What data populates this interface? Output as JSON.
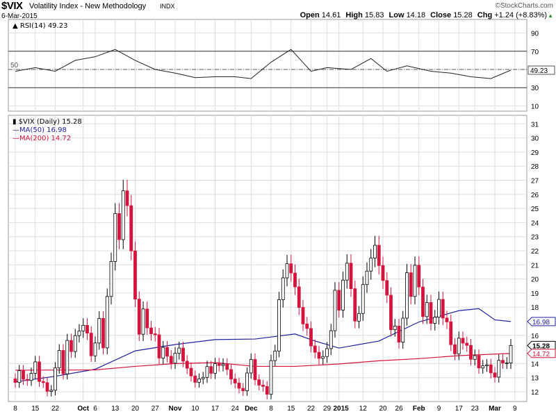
{
  "header": {
    "symbol": "$VIX",
    "description": "Volatility Index - New Methodology",
    "exchange": "INDX",
    "brand": "©StockCharts.com",
    "date": "6-Mar-2015",
    "open_label": "Open",
    "open": "14.61",
    "high_label": "High",
    "high": "15.83",
    "low_label": "Low",
    "low": "14.18",
    "close_label": "Close",
    "close": "15.28",
    "chg_label": "Chg",
    "chg": "+1.24 (+8.83%)",
    "chg_icon": "up-triangle-icon"
  },
  "colors": {
    "up": "#000000",
    "down": "#d4143c",
    "ma50": "#1e1ea0",
    "ma200": "#d4143c",
    "grid": "#dddddd"
  },
  "chart_data": [
    {
      "type": "line",
      "panel": "RSI",
      "legend": "RSI(14) 49.23",
      "last_label": "49.23",
      "ylim": [
        0,
        100
      ],
      "yticks": [
        10,
        30,
        50,
        70,
        90
      ],
      "reference_lines": [
        30,
        50,
        70
      ],
      "points": [
        [
          "09-08",
          48
        ],
        [
          "09-15",
          52
        ],
        [
          "09-22",
          48
        ],
        [
          "09-29",
          60
        ],
        [
          "10-06",
          64
        ],
        [
          "10-13",
          72
        ],
        [
          "10-20",
          60
        ],
        [
          "10-27",
          50
        ],
        [
          "11-03",
          46
        ],
        [
          "11-10",
          41
        ],
        [
          "11-17",
          42
        ],
        [
          "11-24",
          42
        ],
        [
          "12-01",
          40
        ],
        [
          "12-08",
          58
        ],
        [
          "12-15",
          72
        ],
        [
          "12-22",
          48
        ],
        [
          "12-29",
          52
        ],
        [
          "01-07",
          50
        ],
        [
          "01-14",
          62
        ],
        [
          "01-21",
          48
        ],
        [
          "01-28",
          54
        ],
        [
          "02-05",
          48
        ],
        [
          "02-12",
          46
        ],
        [
          "02-20",
          42
        ],
        [
          "02-27",
          40
        ],
        [
          "03-06",
          49.23
        ]
      ]
    },
    {
      "type": "candlestick",
      "panel": "price",
      "legend": "$VIX (Daily) 15.28",
      "scale": "price",
      "ylim": [
        11.4,
        31.6
      ],
      "yticks": [
        12,
        13,
        14,
        16,
        18,
        19,
        20,
        21,
        22,
        23,
        24,
        25,
        26,
        27,
        28,
        29,
        30,
        31
      ],
      "grid": true,
      "x_labels": [
        {
          "label": "8",
          "date": "09-08"
        },
        {
          "label": "15",
          "date": "09-15"
        },
        {
          "label": "22",
          "date": "09-22"
        },
        {
          "label": "Oct",
          "date": "10-01",
          "bold": true
        },
        {
          "label": "6",
          "date": "10-06"
        },
        {
          "label": "13",
          "date": "10-13"
        },
        {
          "label": "20",
          "date": "10-20"
        },
        {
          "label": "27",
          "date": "10-27"
        },
        {
          "label": "Nov",
          "date": "11-03",
          "bold": true
        },
        {
          "label": "10",
          "date": "11-10"
        },
        {
          "label": "17",
          "date": "11-17"
        },
        {
          "label": "24",
          "date": "11-24"
        },
        {
          "label": "Dec",
          "date": "12-01",
          "bold": true
        },
        {
          "label": "8",
          "date": "12-08"
        },
        {
          "label": "15",
          "date": "12-15"
        },
        {
          "label": "22",
          "date": "12-22"
        },
        {
          "label": "29",
          "date": "12-29"
        },
        {
          "label": "2015",
          "date": "01-02",
          "bold": true
        },
        {
          "label": "12",
          "date": "01-12"
        },
        {
          "label": "20",
          "date": "01-20"
        },
        {
          "label": "26",
          "date": "01-26"
        },
        {
          "label": "Feb",
          "date": "02-02",
          "bold": true
        },
        {
          "label": "9",
          "date": "02-09"
        },
        {
          "label": "17",
          "date": "02-17"
        },
        {
          "label": "23",
          "date": "02-23"
        },
        {
          "label": "Mar",
          "date": "03-02",
          "bold": true
        },
        {
          "label": "9",
          "date": "03-09"
        }
      ],
      "dates": [
        "09-08",
        "09-09",
        "09-10",
        "09-11",
        "09-12",
        "09-15",
        "09-16",
        "09-17",
        "09-18",
        "09-19",
        "09-22",
        "09-23",
        "09-24",
        "09-25",
        "09-26",
        "09-29",
        "09-30",
        "10-01",
        "10-02",
        "10-03",
        "10-06",
        "10-07",
        "10-08",
        "10-09",
        "10-10",
        "10-13",
        "10-14",
        "10-15",
        "10-16",
        "10-17",
        "10-20",
        "10-21",
        "10-22",
        "10-23",
        "10-24",
        "10-27",
        "10-28",
        "10-29",
        "10-30",
        "10-31",
        "11-03",
        "11-04",
        "11-05",
        "11-06",
        "11-07",
        "11-10",
        "11-11",
        "11-12",
        "11-13",
        "11-14",
        "11-17",
        "11-18",
        "11-19",
        "11-20",
        "11-21",
        "11-24",
        "11-25",
        "11-26",
        "11-28",
        "12-01",
        "12-02",
        "12-03",
        "12-04",
        "12-05",
        "12-08",
        "12-09",
        "12-10",
        "12-11",
        "12-12",
        "12-15",
        "12-16",
        "12-17",
        "12-18",
        "12-19",
        "12-22",
        "12-23",
        "12-24",
        "12-26",
        "12-29",
        "12-30",
        "12-31",
        "01-02",
        "01-05",
        "01-06",
        "01-07",
        "01-08",
        "01-09",
        "01-12",
        "01-13",
        "01-14",
        "01-15",
        "01-16",
        "01-20",
        "01-21",
        "01-22",
        "01-23",
        "01-26",
        "01-27",
        "01-28",
        "01-29",
        "01-30",
        "02-02",
        "02-03",
        "02-04",
        "02-05",
        "02-06",
        "02-09",
        "02-10",
        "02-11",
        "02-12",
        "02-13",
        "02-17",
        "02-18",
        "02-19",
        "02-20",
        "02-23",
        "02-24",
        "02-25",
        "02-26",
        "02-27",
        "03-02",
        "03-03",
        "03-04",
        "03-05",
        "03-06"
      ],
      "close": [
        12.66,
        13.5,
        12.88,
        12.8,
        13.31,
        14.12,
        12.73,
        12.65,
        12.03,
        12.11,
        13.69,
        14.93,
        13.27,
        15.64,
        14.85,
        15.98,
        16.31,
        16.71,
        16.16,
        14.55,
        15.46,
        17.2,
        15.11,
        18.76,
        21.24,
        24.64,
        22.79,
        26.25,
        25.2,
        21.99,
        18.57,
        16.08,
        17.87,
        16.53,
        16.11,
        16.04,
        14.39,
        15.15,
        14.52,
        14.03,
        14.73,
        15.1,
        14.17,
        13.67,
        13.12,
        12.67,
        12.92,
        13.02,
        13.79,
        13.31,
        13.99,
        13.86,
        13.96,
        13.58,
        12.9,
        12.62,
        12.25,
        12.07,
        13.33,
        14.29,
        12.85,
        12.47,
        12.38,
        11.82,
        14.21,
        14.89,
        18.53,
        20.08,
        21.08,
        20.42,
        19.44,
        17.98,
        16.81,
        16.49,
        15.25,
        14.8,
        14.37,
        14.5,
        15.06,
        16.33,
        19.2,
        17.79,
        19.92,
        21.12,
        19.31,
        17.01,
        17.55,
        19.6,
        20.56,
        21.48,
        22.39,
        20.95,
        19.89,
        18.85,
        16.4,
        16.66,
        15.52,
        17.22,
        20.44,
        18.76,
        20.97,
        19.43,
        17.33,
        18.33,
        16.85,
        17.29,
        18.55,
        17.23,
        16.96,
        15.34,
        14.69,
        15.8,
        15.45,
        15.29,
        14.3,
        14.56,
        13.69,
        13.84,
        13.91,
        13.34,
        13.04,
        14.23,
        14.04,
        14.04,
        15.28
      ],
      "overlays": [
        {
          "name": "MA(50) 16.98",
          "last_label": "16.98",
          "points": [
            [
              "09-08",
              12.7
            ],
            [
              "09-22",
              13.1
            ],
            [
              "10-06",
              13.6
            ],
            [
              "10-20",
              14.9
            ],
            [
              "11-03",
              15.35
            ],
            [
              "11-17",
              15.7
            ],
            [
              "12-02",
              15.74
            ],
            [
              "12-16",
              16.1
            ],
            [
              "12-23",
              15.6
            ],
            [
              "01-02",
              15.1
            ],
            [
              "01-16",
              15.6
            ],
            [
              "02-02",
              16.95
            ],
            [
              "02-17",
              17.75
            ],
            [
              "02-24",
              17.9
            ],
            [
              "03-02",
              17.1
            ],
            [
              "03-06",
              16.98
            ]
          ]
        },
        {
          "name": "MA(200) 14.72",
          "last_label": "14.72",
          "points": [
            [
              "09-08",
              13.53
            ],
            [
              "10-06",
              13.55
            ],
            [
              "10-20",
              13.8
            ],
            [
              "11-03",
              14.0
            ],
            [
              "11-17",
              14.07
            ],
            [
              "12-02",
              13.8
            ],
            [
              "12-16",
              13.8
            ],
            [
              "01-02",
              13.97
            ],
            [
              "01-16",
              14.2
            ],
            [
              "02-02",
              14.35
            ],
            [
              "02-17",
              14.56
            ],
            [
              "03-06",
              14.72
            ]
          ]
        }
      ],
      "last_label": "15.28"
    }
  ]
}
